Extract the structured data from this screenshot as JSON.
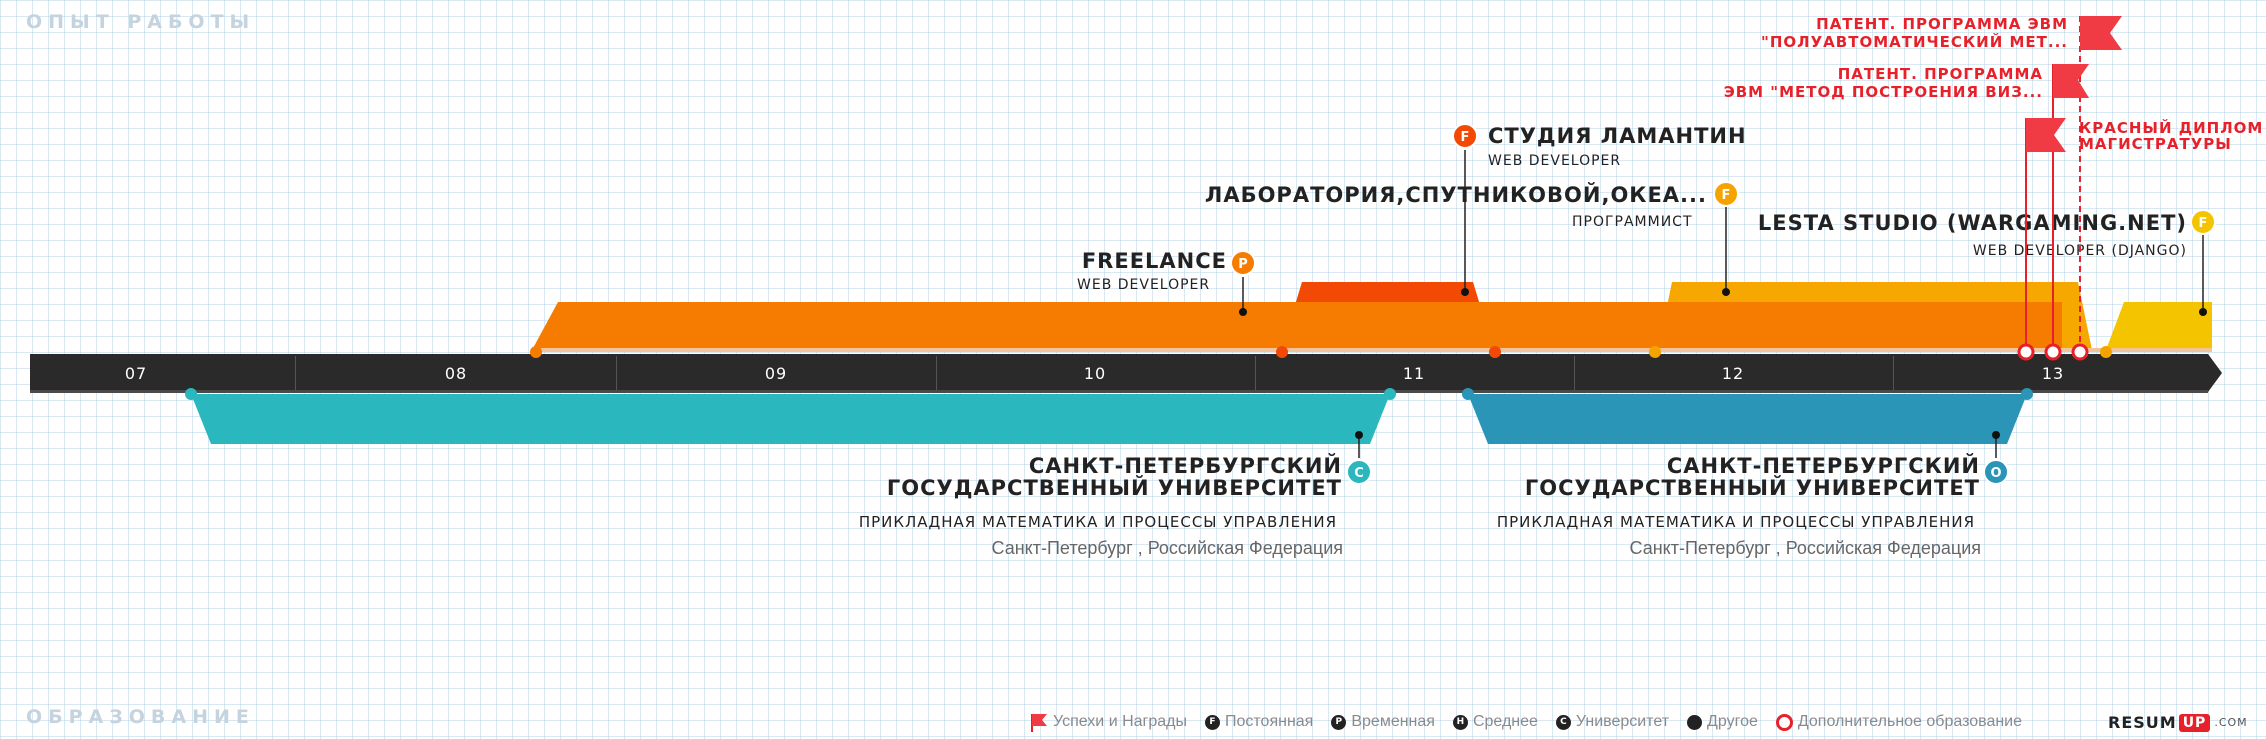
{
  "sections": {
    "experience": "ОПЫТ РАБОТЫ",
    "education": "ОБРАЗОВАНИЕ"
  },
  "timeline": {
    "ticks": [
      "07",
      "08",
      "09",
      "10",
      "11",
      "12",
      "13"
    ]
  },
  "jobs": [
    {
      "title": "FREELANCE",
      "subtitle": "WEB DEVELOPER",
      "badge": "P",
      "color": "#f57c00"
    },
    {
      "title": "СТУДИЯ ЛАМАНТИН",
      "subtitle": "WEB DEVELOPER",
      "badge": "F",
      "color": "#f24a05"
    },
    {
      "title": "ЛАБОРАТОРИЯ,СПУТНИКОВОЙ,ОКЕА...",
      "subtitle": "ПРОГРАММИСТ",
      "badge": "F",
      "color": "#f5a300"
    },
    {
      "title": "LESTA STUDIO (WARGAMING.NET)",
      "subtitle": "WEB DEVELOPER (DJANGO)",
      "badge": "F",
      "color": "#f5c400"
    }
  ],
  "education": [
    {
      "title_line1": "САНКТ-ПЕТЕРБУРГСКИЙ",
      "title_line2": "ГОСУДАРСТВЕННЫЙ УНИВЕРСИТЕТ",
      "field": "ПРИКЛАДНАЯ МАТЕМАТИКА И ПРОЦЕССЫ УПРАВЛЕНИЯ",
      "location": "Санкт-Петербург , Российская Федерация",
      "badge": "C",
      "color": "#2ab7bd"
    },
    {
      "title_line1": "САНКТ-ПЕТЕРБУРГСКИЙ",
      "title_line2": "ГОСУДАРСТВЕННЫЙ УНИВЕРСИТЕТ",
      "field": "ПРИКЛАДНАЯ МАТЕМАТИКА И ПРОЦЕССЫ УПРАВЛЕНИЯ",
      "location": "Санкт-Петербург , Российская Федерация",
      "badge": "O",
      "color": "#2b95b8"
    }
  ],
  "awards": [
    {
      "line1": "ПАТЕНТ. ПРОГРАММА ЭВМ",
      "line2": "\"ПОЛУАВТОМАТИЧЕСКИЙ МЕТ..."
    },
    {
      "line1": "ПАТЕНТ. ПРОГРАММА",
      "line2": "ЭВМ \"МЕТОД ПОСТРОЕНИЯ ВИЗ..."
    },
    {
      "line1": "КРАСНЫЙ ДИПЛОМ",
      "line2": "МАГИСТРАТУРЫ"
    }
  ],
  "legend": {
    "awards": "Успехи и Награды",
    "permanent": "Постоянная",
    "temporary": "Временная",
    "secondary": "Среднее",
    "university": "Университет",
    "other": "Другое",
    "additional": "Дополнительное образование",
    "letters": {
      "permanent": "F",
      "temporary": "P",
      "secondary": "H",
      "university": "C"
    }
  },
  "brand": {
    "name": "RESUM",
    "up": "UP",
    "suffix": ".COM"
  },
  "colors": {
    "axis": "#2a2a2a",
    "award": "#e8202a",
    "muted": "#c5d3df"
  }
}
